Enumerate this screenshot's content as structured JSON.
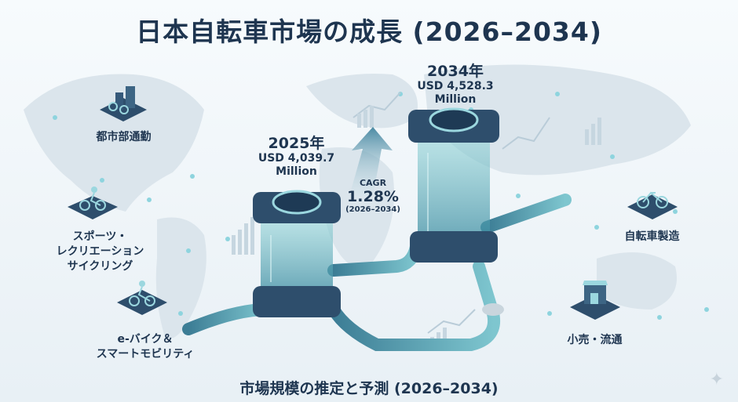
{
  "title": "日本自転車市場の成長 (2026–2034)",
  "subtitle": "市場規模の推定と予測 (2026–2034)",
  "market_2025": {
    "year": "2025年",
    "amount": "USD 4,039.7",
    "unit": "Million"
  },
  "market_2034": {
    "year": "2034年",
    "amount": "USD 4,528.3",
    "unit": "Million"
  },
  "cagr": {
    "label": "CAGR",
    "value": "1.28%",
    "period": "(2026–2034)"
  },
  "segments": {
    "urban_commute": "都市部通勤",
    "sports_line1": "スポーツ・",
    "sports_line2": "レクリエーション",
    "sports_line3": "サイクリング",
    "ebike_line1": "e-バイク＆",
    "ebike_line2": "スマートモビリティ",
    "manufacturing": "自転車製造",
    "retail": "小売・流通"
  },
  "colors": {
    "navy": "#1e3550",
    "teal": "#5fb8c4",
    "tile": "#2e4e6c"
  }
}
